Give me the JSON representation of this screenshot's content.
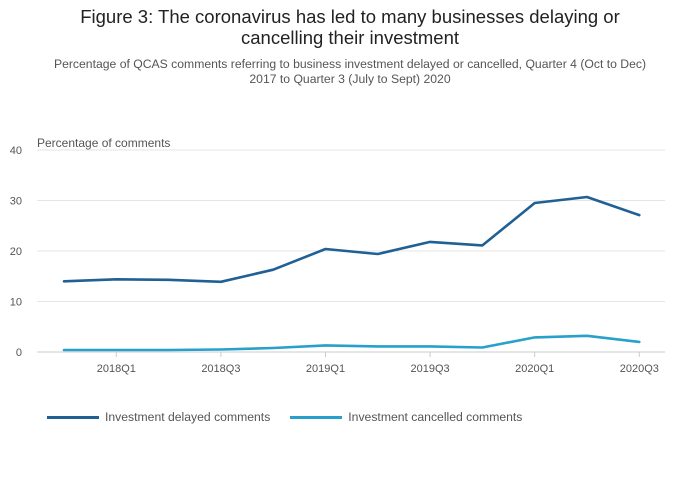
{
  "title_lines": [
    "Figure 3: The coronavirus has led to many businesses delaying or",
    "cancelling their investment"
  ],
  "subtitle_lines": [
    "Percentage of QCAS comments referring to business investment delayed or cancelled, Quarter 4 (Oct to Dec)",
    "2017 to Quarter 3 (July to Sept) 2020"
  ],
  "colors": {
    "delayed": "#206095",
    "cancelled": "#27a0cc",
    "grid": "#e6e6e6",
    "axis": "#cccccc",
    "text": "#555555"
  },
  "chart_data": {
    "type": "line",
    "title": "Figure 3: The coronavirus has led to many businesses delaying or cancelling their investment",
    "subtitle": "Percentage of QCAS comments referring to business investment delayed or cancelled, Quarter 4 (Oct to Dec) 2017 to Quarter 3 (July to Sept) 2020",
    "ylabel": "Percentage of comments",
    "xlabel": "",
    "x": [
      "2017Q4",
      "2018Q1",
      "2018Q2",
      "2018Q3",
      "2018Q4",
      "2019Q1",
      "2019Q2",
      "2019Q3",
      "2019Q4",
      "2020Q1",
      "2020Q2",
      "2020Q3"
    ],
    "x_tick_labels": [
      "2018Q1",
      "2018Q3",
      "2019Q1",
      "2019Q3",
      "2020Q1",
      "2020Q3"
    ],
    "ylim": [
      0,
      40
    ],
    "y_ticks": [
      0,
      10,
      20,
      30,
      40
    ],
    "grid": true,
    "legend_position": "bottom-left",
    "series": [
      {
        "name": "Investment delayed comments",
        "values": [
          14.0,
          14.4,
          14.3,
          13.9,
          16.3,
          20.4,
          19.4,
          21.8,
          21.1,
          29.5,
          30.7,
          27.1
        ]
      },
      {
        "name": "Investment cancelled comments",
        "values": [
          0.4,
          0.4,
          0.4,
          0.5,
          0.8,
          1.3,
          1.1,
          1.1,
          0.9,
          2.9,
          3.2,
          2.0
        ]
      }
    ]
  }
}
